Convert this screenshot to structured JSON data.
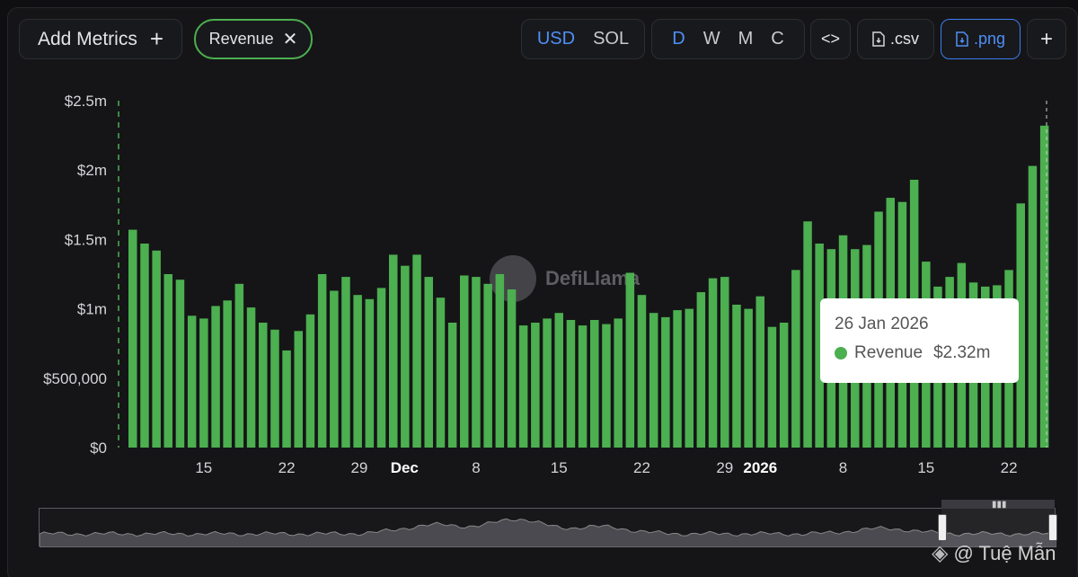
{
  "toolbar": {
    "add_metrics_label": "Add Metrics",
    "add_metrics_icon": "+",
    "chip_label": "Revenue",
    "chip_close_icon": "✕",
    "currency": [
      "USD",
      "SOL"
    ],
    "currency_active": "USD",
    "periods": [
      "D",
      "W",
      "M",
      "C"
    ],
    "period_active": "D",
    "embed_label": "<>",
    "csv_label": ".csv",
    "png_label": ".png",
    "more_label": "+"
  },
  "tooltip": {
    "date": "26 Jan 2026",
    "series": "Revenue",
    "value": "$2.32m"
  },
  "watermark": "DefiLlama",
  "credit": "@ Tuệ Mẫn",
  "colors": {
    "bar": "#4caf50",
    "accent": "#4f8ff7",
    "background": "#151517"
  },
  "chart_data": {
    "type": "bar",
    "title": "",
    "xlabel": "",
    "ylabel": "",
    "ylim": [
      0,
      2500000
    ],
    "y_ticks": [
      "$0",
      "$500,000",
      "$1m",
      "$1.5m",
      "$2m",
      "$2.5m"
    ],
    "x_tick_labels": [
      "15",
      "22",
      "29",
      "Dec",
      "8",
      "15",
      "22",
      "29",
      "2026",
      "8",
      "15",
      "22"
    ],
    "series": [
      {
        "name": "Revenue",
        "x_start": "2025-11-09",
        "x_end": "2026-01-26",
        "values": [
          1570000,
          1470000,
          1420000,
          1250000,
          1210000,
          950000,
          930000,
          1020000,
          1060000,
          1180000,
          1010000,
          900000,
          850000,
          700000,
          840000,
          960000,
          1250000,
          1130000,
          1230000,
          1100000,
          1070000,
          1150000,
          1390000,
          1310000,
          1390000,
          1230000,
          1080000,
          900000,
          1240000,
          1230000,
          1180000,
          1250000,
          1140000,
          880000,
          900000,
          930000,
          970000,
          920000,
          880000,
          920000,
          890000,
          930000,
          1260000,
          1100000,
          970000,
          940000,
          990000,
          1000000,
          1120000,
          1220000,
          1230000,
          1030000,
          1000000,
          1090000,
          870000,
          900000,
          1280000,
          1630000,
          1470000,
          1430000,
          1530000,
          1430000,
          1460000,
          1700000,
          1800000,
          1770000,
          1930000,
          1340000,
          1160000,
          1230000,
          1330000,
          1190000,
          1160000,
          1170000,
          1280000,
          1760000,
          2030000,
          2320000
        ]
      }
    ]
  }
}
